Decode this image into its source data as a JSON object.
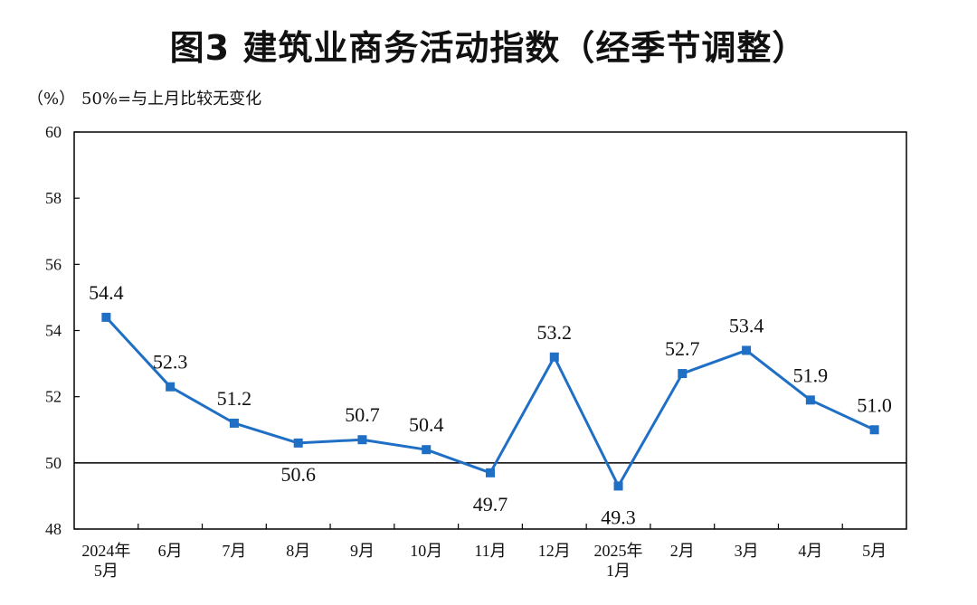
{
  "title": "图3  建筑业商务活动指数（经季节调整）",
  "unit_label": "（%）",
  "note": "50%=与上月比较无变化",
  "colors": {
    "line": "#1f6fc5",
    "axis": "#000000"
  },
  "chart_data": {
    "type": "line",
    "categories": [
      [
        "2024年",
        "5月"
      ],
      [
        "6月"
      ],
      [
        "7月"
      ],
      [
        "8月"
      ],
      [
        "9月"
      ],
      [
        "10月"
      ],
      [
        "11月"
      ],
      [
        "12月"
      ],
      [
        "2025年",
        "1月"
      ],
      [
        "2月"
      ],
      [
        "3月"
      ],
      [
        "4月"
      ],
      [
        "5月"
      ]
    ],
    "series": [
      {
        "values": [
          54.4,
          52.3,
          51.2,
          50.6,
          50.7,
          50.4,
          49.7,
          53.2,
          49.3,
          52.7,
          53.4,
          51.9,
          51.0
        ],
        "labels": [
          "54.4",
          "52.3",
          "51.2",
          "50.6",
          "50.7",
          "50.4",
          "49.7",
          "53.2",
          "49.3",
          "52.7",
          "53.4",
          "51.9",
          "51.0"
        ]
      }
    ],
    "ylim": [
      48,
      60
    ],
    "yticks": [
      "48",
      "50",
      "52",
      "54",
      "56",
      "58",
      "60"
    ],
    "reference_line": 50,
    "marker": "square"
  }
}
